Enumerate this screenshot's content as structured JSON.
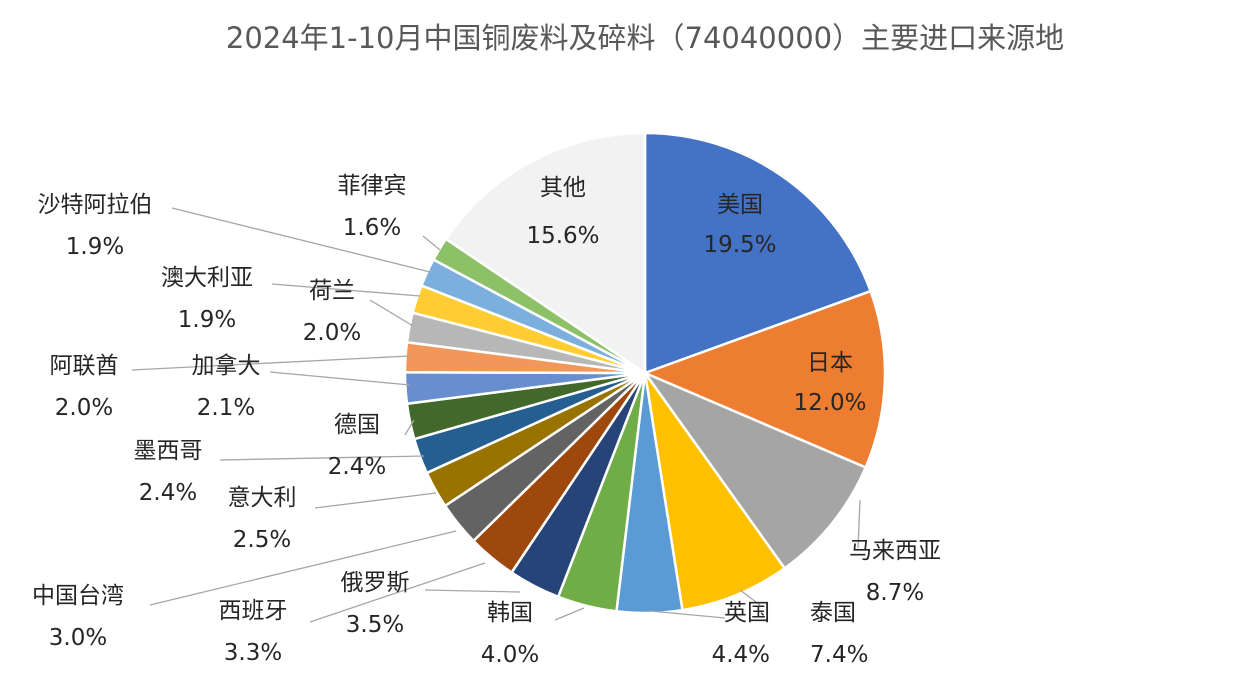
{
  "chart_data": {
    "type": "pie",
    "title": "2024年1-10月中国铜废料及碎料（74040000）主要进口来源地",
    "slices": [
      {
        "name": "美国",
        "value": 19.5,
        "label": "19.5%",
        "color": "#4472c4"
      },
      {
        "name": "日本",
        "value": 12.0,
        "label": "12.0%",
        "color": "#ed7d31"
      },
      {
        "name": "马来西亚",
        "value": 8.7,
        "label": "8.7%",
        "color": "#a5a5a5"
      },
      {
        "name": "泰国",
        "value": 7.4,
        "label": "7.4%",
        "color": "#ffc000"
      },
      {
        "name": "英国",
        "value": 4.4,
        "label": "4.4%",
        "color": "#5b9bd5"
      },
      {
        "name": "韩国",
        "value": 4.0,
        "label": "4.0%",
        "color": "#70ad47"
      },
      {
        "name": "俄罗斯",
        "value": 3.5,
        "label": "3.5%",
        "color": "#264478"
      },
      {
        "name": "西班牙",
        "value": 3.3,
        "label": "3.3%",
        "color": "#9e480e"
      },
      {
        "name": "中国台湾",
        "value": 3.0,
        "label": "3.0%",
        "color": "#636363"
      },
      {
        "name": "意大利",
        "value": 2.5,
        "label": "2.5%",
        "color": "#997300"
      },
      {
        "name": "墨西哥",
        "value": 2.4,
        "label": "2.4%",
        "color": "#255e91"
      },
      {
        "name": "德国",
        "value": 2.4,
        "label": "2.4%",
        "color": "#43682b"
      },
      {
        "name": "加拿大",
        "value": 2.1,
        "label": "2.1%",
        "color": "#698ed0"
      },
      {
        "name": "阿联酋",
        "value": 2.0,
        "label": "2.0%",
        "color": "#f1975a"
      },
      {
        "name": "荷兰",
        "value": 2.0,
        "label": "2.0%",
        "color": "#b7b7b7"
      },
      {
        "name": "澳大利亚",
        "value": 1.9,
        "label": "1.9%",
        "color": "#ffcd33"
      },
      {
        "name": "沙特阿拉伯",
        "value": 1.9,
        "label": "1.9%",
        "color": "#7cafdd"
      },
      {
        "name": "菲律宾",
        "value": 1.6,
        "label": "1.6%",
        "color": "#8cc168"
      },
      {
        "name": "其他",
        "value": 15.6,
        "label": "15.6%",
        "color": "#f2f2f2"
      }
    ],
    "legend": "none"
  }
}
